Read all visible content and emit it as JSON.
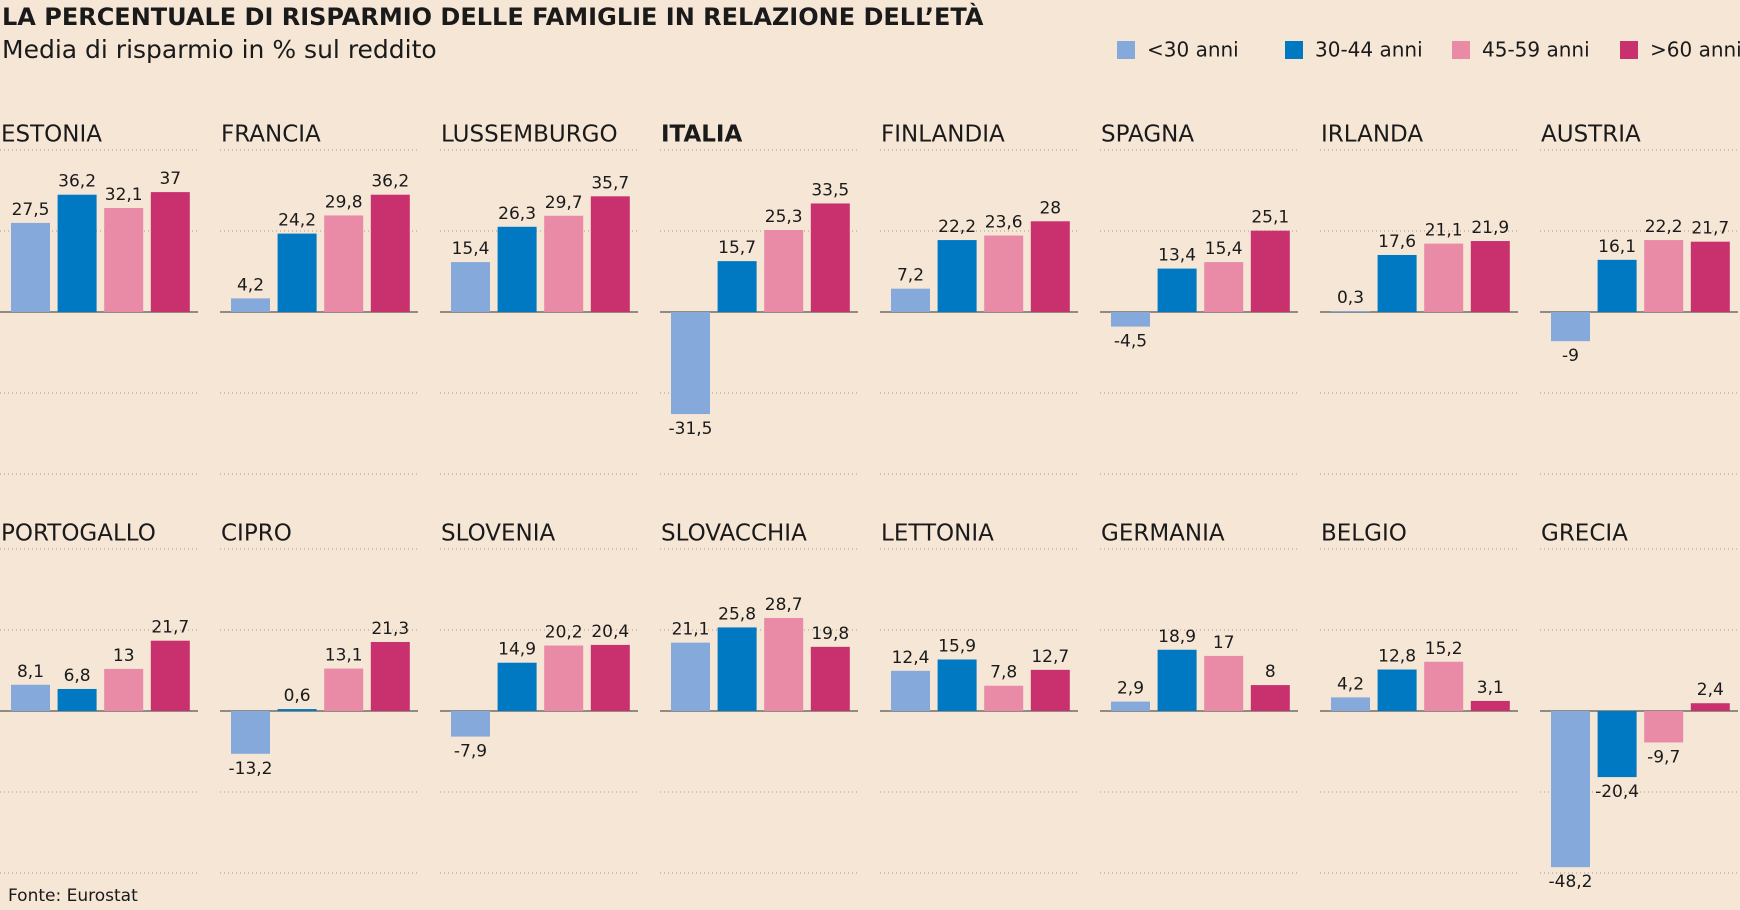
{
  "chart_data": {
    "type": "bar",
    "title": "LA PERCENTUALE DI RISPARMIO DELLE FAMIGLIE IN RELAZIONE DELL’ETÀ",
    "subtitle": "Media di risparmio in % sul reddito",
    "source": "Fonte: Eurostat",
    "highlight": "ITALIA",
    "categories": [
      "ESTONIA",
      "FRANCIA",
      "LUSSEMBURGO",
      "ITALIA",
      "FINLANDIA",
      "SPAGNA",
      "IRLANDA",
      "AUSTRIA",
      "PORTOGALLO",
      "CIPRO",
      "SLOVENIA",
      "SLOVACCHIA",
      "LETTONIA",
      "GERMANIA",
      "BELGIO",
      "GRECIA"
    ],
    "series": [
      {
        "name": "<30 anni",
        "color": "#85a9da",
        "values": [
          27.5,
          4.2,
          15.4,
          -31.5,
          7.2,
          -4.5,
          0.3,
          -9,
          8.1,
          -13.2,
          -7.9,
          21.1,
          12.4,
          2.9,
          4.2,
          -48.2
        ],
        "value_labels": [
          "27,5",
          "4,2",
          "15,4",
          "-31,5",
          "7,2",
          "-4,5",
          "0,3",
          "-9",
          "8,1",
          "-13,2",
          "-7,9",
          "21,1",
          "12,4",
          "2,9",
          "4,2",
          "-48,2"
        ]
      },
      {
        "name": "30-44 anni",
        "color": "#0079c2",
        "values": [
          36.2,
          24.2,
          26.3,
          15.7,
          22.2,
          13.4,
          17.6,
          16.1,
          6.8,
          0.6,
          14.9,
          25.8,
          15.9,
          18.9,
          12.8,
          -20.4
        ],
        "value_labels": [
          "36,2",
          "24,2",
          "26,3",
          "15,7",
          "22,2",
          "13,4",
          "17,6",
          "16,1",
          "6,8",
          "0,6",
          "14,9",
          "25,8",
          "15,9",
          "18,9",
          "12,8",
          "-20,4"
        ]
      },
      {
        "name": "45-59 anni",
        "color": "#e98aa7",
        "values": [
          32.1,
          29.8,
          29.7,
          25.3,
          23.6,
          15.4,
          21.1,
          22.2,
          13,
          13.1,
          20.2,
          28.7,
          7.8,
          17,
          15.2,
          -9.7
        ],
        "value_labels": [
          "32,1",
          "29,8",
          "29,7",
          "25,3",
          "23,6",
          "15,4",
          "21,1",
          "22,2",
          "13",
          "13,1",
          "20,2",
          "28,7",
          "7,8",
          "17",
          "15,2",
          "-9,7"
        ]
      },
      {
        "name": ">60 anni",
        "color": "#c8306e",
        "values": [
          37,
          36.2,
          35.7,
          33.5,
          28,
          25.1,
          21.9,
          21.7,
          21.7,
          21.3,
          20.4,
          19.8,
          12.7,
          8,
          3.1,
          2.4
        ],
        "value_labels": [
          "37",
          "36,2",
          "35,7",
          "33,5",
          "28",
          "25,1",
          "21,9",
          "21,7",
          "21,7",
          "21,3",
          "20,4",
          "19,8",
          "12,7",
          "8",
          "3,1",
          "2,4"
        ]
      }
    ],
    "ylim": [
      -50,
      50
    ],
    "yticks": [
      -50,
      -25,
      0,
      25,
      50
    ],
    "grid": true
  }
}
